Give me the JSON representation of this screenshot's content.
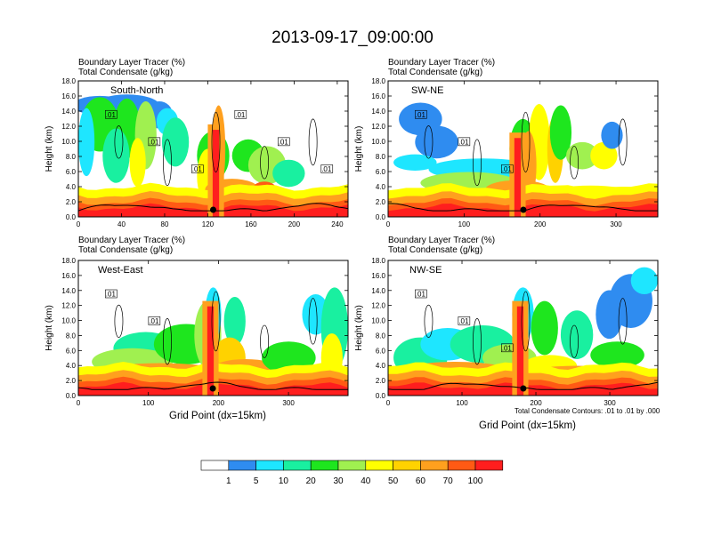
{
  "title": "2013-09-17_09:00:00",
  "colors": [
    "#ffffff",
    "#2f8cf0",
    "#1ee6ff",
    "#19f0a0",
    "#1ee61e",
    "#a0f050",
    "#ffff00",
    "#ffd200",
    "#ffa01e",
    "#ff5a14",
    "#ff1e1e"
  ],
  "chart_data": [
    {
      "type": "heatmap",
      "panel_name": "South-North",
      "label_line1": "Boundary Layer Tracer   (%)",
      "label_line2": "Total Condensate   (g/kg)",
      "ylabel": "Height (km)",
      "xlabel": "",
      "xlim": [
        0,
        250
      ],
      "ylim": [
        0,
        18
      ],
      "xticks": [
        "0",
        "40",
        "80",
        "120",
        "160",
        "200",
        "240"
      ],
      "yticks": [
        "0.0",
        "2.0",
        "4.0",
        "6.0",
        "8.0",
        "10.0",
        "12.0",
        "14.0",
        "16.0",
        "18.0"
      ],
      "contour_labels": [
        ".01",
        ".01",
        ".01",
        ".01",
        ".01",
        ".01"
      ],
      "marker_x": 125
    },
    {
      "type": "heatmap",
      "panel_name": "SW-NE",
      "label_line1": "Boundary Layer Tracer   (%)",
      "label_line2": "Total Condensate   (g/kg)",
      "ylabel": "Height (km)",
      "xlabel": "",
      "xlim": [
        0,
        355
      ],
      "ylim": [
        0,
        18
      ],
      "xticks": [
        "0",
        "100",
        "200",
        "300"
      ],
      "yticks": [
        "0.0",
        "2.0",
        "4.0",
        "6.0",
        "8.0",
        "10.0",
        "12.0",
        "14.0",
        "16.0",
        "18.0"
      ],
      "contour_labels": [
        ".01",
        ".01",
        ".01"
      ],
      "marker_x": 178
    },
    {
      "type": "heatmap",
      "panel_name": "West-East",
      "label_line1": "Boundary Layer Tracer   (%)",
      "label_line2": "Total Condensate   (g/kg)",
      "ylabel": "Height (km)",
      "xlabel": "Grid Point (dx=15km)",
      "xlim": [
        0,
        385
      ],
      "ylim": [
        0,
        18
      ],
      "xticks": [
        "0",
        "100",
        "200",
        "300"
      ],
      "yticks": [
        "0.0",
        "2.0",
        "4.0",
        "6.0",
        "8.0",
        "10.0",
        "12.0",
        "14.0",
        "16.0",
        "18.0"
      ],
      "contour_labels": [
        ".01",
        ".01"
      ],
      "marker_x": 192
    },
    {
      "type": "heatmap",
      "panel_name": "NW-SE",
      "label_line1": "Boundary Layer Tracer   (%)",
      "label_line2": "Total Condensate   (g/kg)",
      "ylabel": "Height (km)",
      "xlabel": "Grid Point (dx=15km)",
      "xlim": [
        0,
        365
      ],
      "ylim": [
        0,
        18
      ],
      "xticks": [
        "0",
        "100",
        "200",
        "300"
      ],
      "yticks": [
        "0.0",
        "2.0",
        "4.0",
        "6.0",
        "8.0",
        "10.0",
        "12.0",
        "14.0",
        "16.0",
        "18.0"
      ],
      "contour_labels": [
        ".01",
        ".01",
        ".01"
      ],
      "marker_x": 183,
      "note": "Total Condensate Contours: .01 to .01 by .000"
    }
  ],
  "colorbar": {
    "labels": [
      "1",
      "5",
      "10",
      "20",
      "30",
      "40",
      "50",
      "60",
      "70",
      "100"
    ]
  }
}
